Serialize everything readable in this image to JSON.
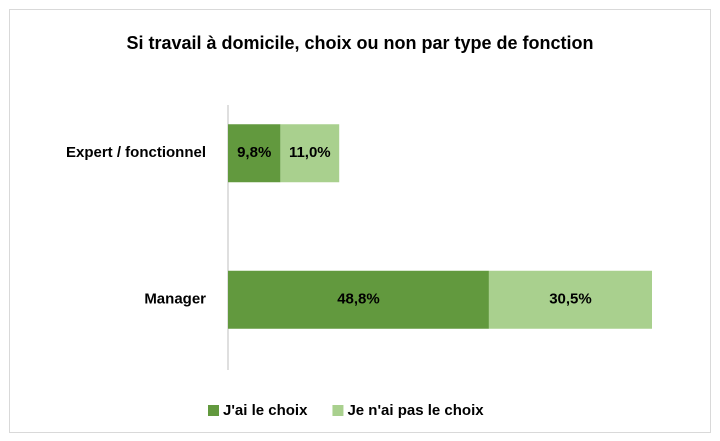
{
  "chart_data": {
    "type": "stacked-bar-horizontal",
    "title": "Si travail à domicile, choix ou non par type de fonction",
    "categories": [
      "Expert / fonctionnel",
      "Manager"
    ],
    "series": [
      {
        "name": "J'ai le choix",
        "color": "#62993e",
        "values": [
          9.8,
          48.8
        ],
        "value_labels": [
          "9,8%",
          "48,8%"
        ]
      },
      {
        "name": "Je n'ai pas le choix",
        "color": "#a9d08e",
        "values": [
          11.0,
          30.5
        ],
        "value_labels": [
          "11,0%",
          "30,5%"
        ]
      }
    ],
    "legend": "bottom"
  }
}
